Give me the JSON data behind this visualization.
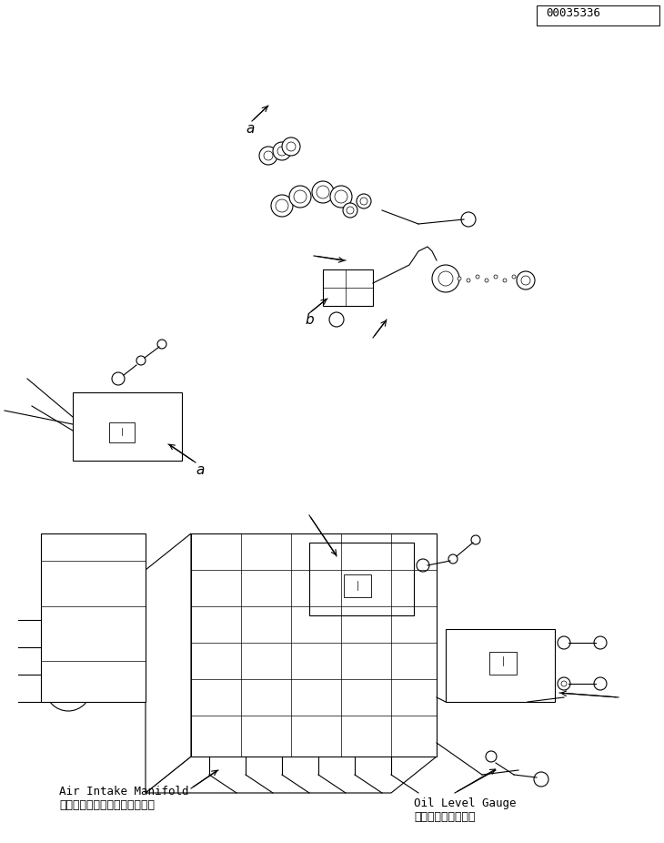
{
  "title": "",
  "bg_color": "#ffffff",
  "line_color": "#000000",
  "label_japanese_1": "エアーインテークマニホールド",
  "label_english_1": "Air Intake Manifold",
  "label_japanese_2": "オイルレベルゲージ",
  "label_english_2": "Oil Level Gauge",
  "label_a": "a",
  "label_b": "b",
  "part_number": "00035336",
  "font_size_label": 9,
  "font_size_small": 8,
  "font_size_part": 9
}
